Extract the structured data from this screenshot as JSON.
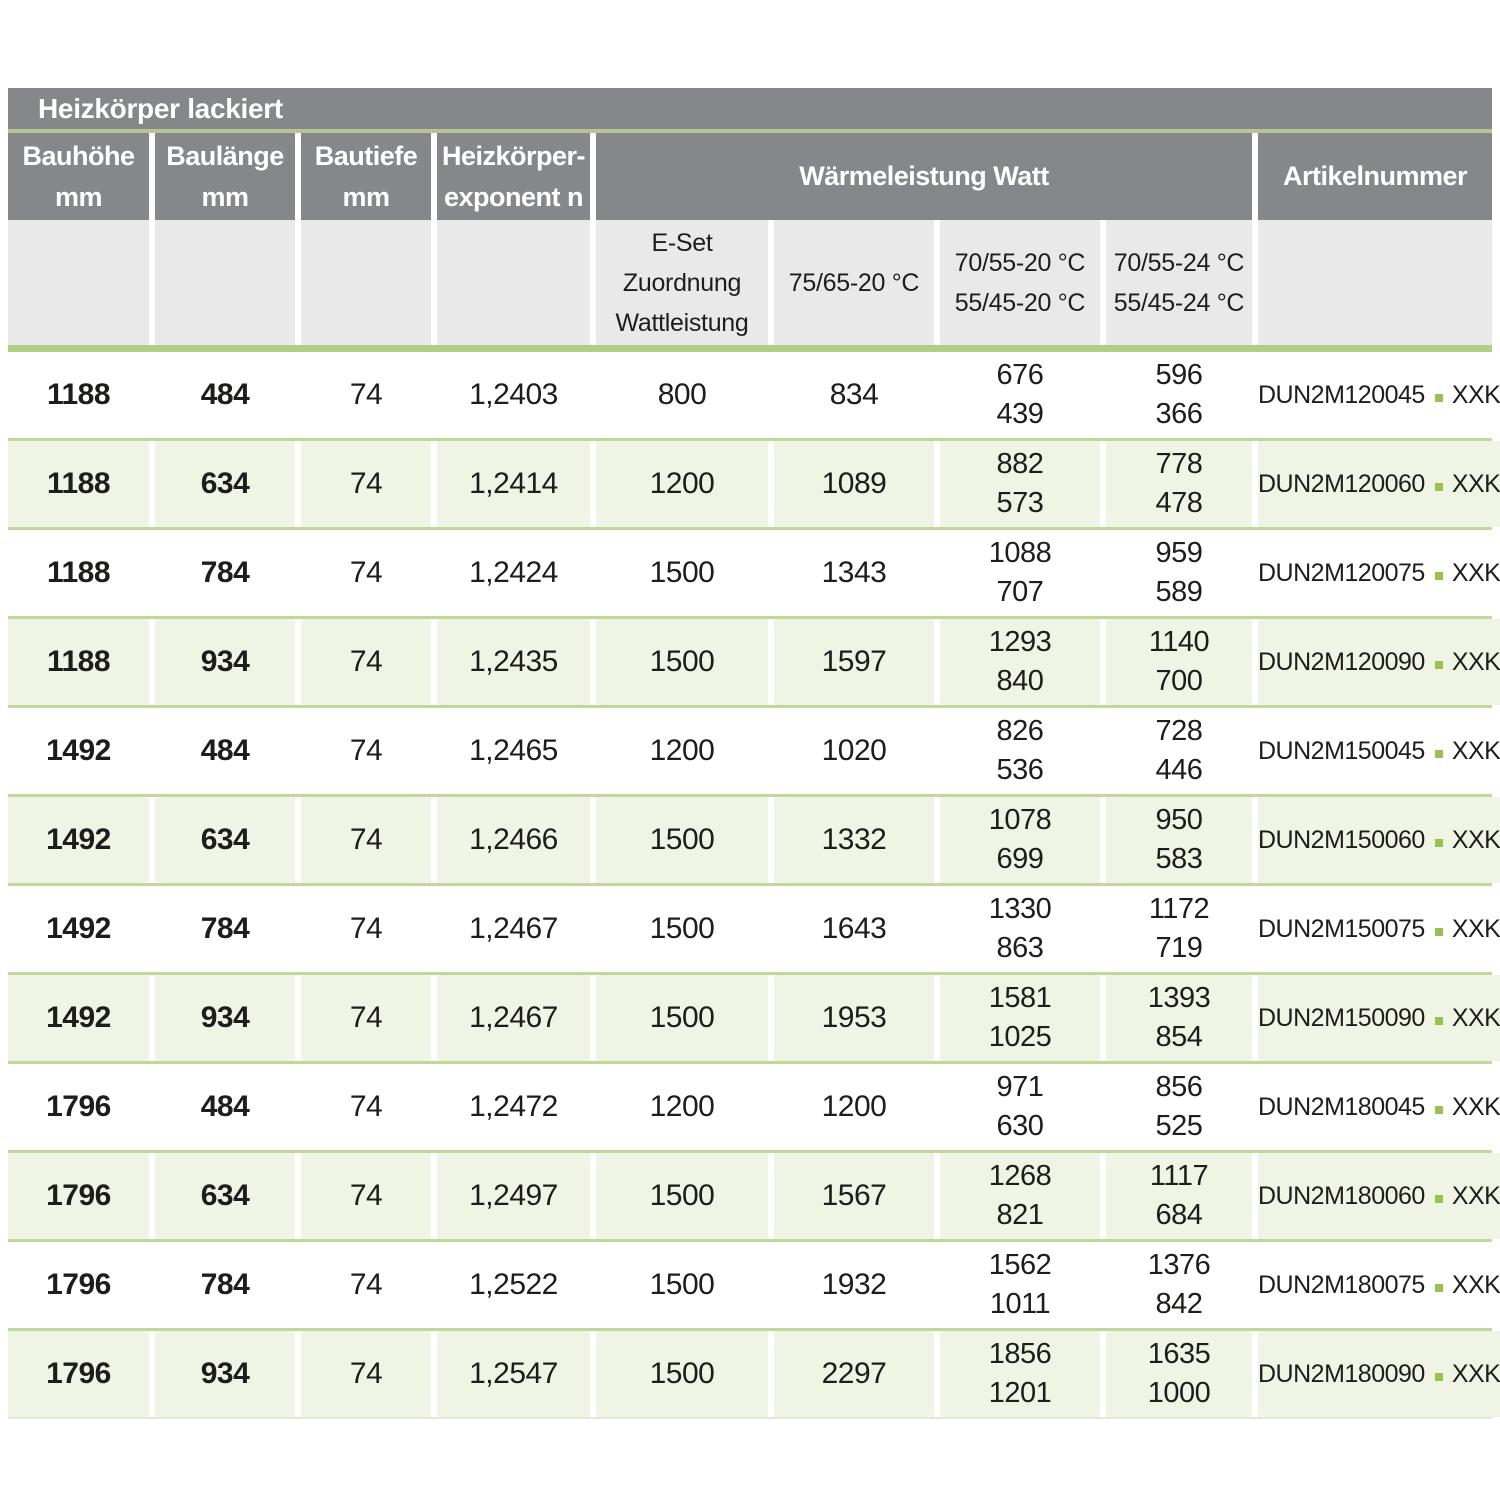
{
  "title": "Heizkörper lackiert",
  "headers": [
    {
      "lines": [
        "Bauhöhe",
        "mm"
      ]
    },
    {
      "lines": [
        "Baulänge",
        "mm"
      ]
    },
    {
      "lines": [
        "Bautiefe",
        "mm"
      ]
    },
    {
      "lines": [
        "Heizkörper-",
        "exponent n"
      ]
    }
  ],
  "watt_group_header": "Wärmeleistung Watt",
  "artikel_header": "Artikelnummer",
  "sub_headers": [
    {
      "lines": [
        "E-Set",
        "Zuordnung",
        "Wattleistung"
      ]
    },
    {
      "lines": [
        "75/65-20 °C"
      ]
    },
    {
      "lines": [
        "70/55-20 °C",
        "55/45-20 °C"
      ]
    },
    {
      "lines": [
        "70/55-24 °C",
        "55/45-24 °C"
      ]
    }
  ],
  "rows": [
    {
      "bauhoehe": "1188",
      "baulaenge": "484",
      "bautiefe": "74",
      "exponent": "1,2403",
      "eset": "800",
      "w7565": "834",
      "w70_20": [
        "676",
        "439"
      ],
      "w70_24": [
        "596",
        "366"
      ],
      "artikel_code": "DUN2M120045",
      "artikel_suffix": "XXK"
    },
    {
      "bauhoehe": "1188",
      "baulaenge": "634",
      "bautiefe": "74",
      "exponent": "1,2414",
      "eset": "1200",
      "w7565": "1089",
      "w70_20": [
        "882",
        "573"
      ],
      "w70_24": [
        "778",
        "478"
      ],
      "artikel_code": "DUN2M120060",
      "artikel_suffix": "XXK"
    },
    {
      "bauhoehe": "1188",
      "baulaenge": "784",
      "bautiefe": "74",
      "exponent": "1,2424",
      "eset": "1500",
      "w7565": "1343",
      "w70_20": [
        "1088",
        "707"
      ],
      "w70_24": [
        "959",
        "589"
      ],
      "artikel_code": "DUN2M120075",
      "artikel_suffix": "XXK"
    },
    {
      "bauhoehe": "1188",
      "baulaenge": "934",
      "bautiefe": "74",
      "exponent": "1,2435",
      "eset": "1500",
      "w7565": "1597",
      "w70_20": [
        "1293",
        "840"
      ],
      "w70_24": [
        "1140",
        "700"
      ],
      "artikel_code": "DUN2M120090",
      "artikel_suffix": "XXK"
    },
    {
      "bauhoehe": "1492",
      "baulaenge": "484",
      "bautiefe": "74",
      "exponent": "1,2465",
      "eset": "1200",
      "w7565": "1020",
      "w70_20": [
        "826",
        "536"
      ],
      "w70_24": [
        "728",
        "446"
      ],
      "artikel_code": "DUN2M150045",
      "artikel_suffix": "XXK"
    },
    {
      "bauhoehe": "1492",
      "baulaenge": "634",
      "bautiefe": "74",
      "exponent": "1,2466",
      "eset": "1500",
      "w7565": "1332",
      "w70_20": [
        "1078",
        "699"
      ],
      "w70_24": [
        "950",
        "583"
      ],
      "artikel_code": "DUN2M150060",
      "artikel_suffix": "XXK"
    },
    {
      "bauhoehe": "1492",
      "baulaenge": "784",
      "bautiefe": "74",
      "exponent": "1,2467",
      "eset": "1500",
      "w7565": "1643",
      "w70_20": [
        "1330",
        "863"
      ],
      "w70_24": [
        "1172",
        "719"
      ],
      "artikel_code": "DUN2M150075",
      "artikel_suffix": "XXK"
    },
    {
      "bauhoehe": "1492",
      "baulaenge": "934",
      "bautiefe": "74",
      "exponent": "1,2467",
      "eset": "1500",
      "w7565": "1953",
      "w70_20": [
        "1581",
        "1025"
      ],
      "w70_24": [
        "1393",
        "854"
      ],
      "artikel_code": "DUN2M150090",
      "artikel_suffix": "XXK"
    },
    {
      "bauhoehe": "1796",
      "baulaenge": "484",
      "bautiefe": "74",
      "exponent": "1,2472",
      "eset": "1200",
      "w7565": "1200",
      "w70_20": [
        "971",
        "630"
      ],
      "w70_24": [
        "856",
        "525"
      ],
      "artikel_code": "DUN2M180045",
      "artikel_suffix": "XXK"
    },
    {
      "bauhoehe": "1796",
      "baulaenge": "634",
      "bautiefe": "74",
      "exponent": "1,2497",
      "eset": "1500",
      "w7565": "1567",
      "w70_20": [
        "1268",
        "821"
      ],
      "w70_24": [
        "1117",
        "684"
      ],
      "artikel_code": "DUN2M180060",
      "artikel_suffix": "XXK"
    },
    {
      "bauhoehe": "1796",
      "baulaenge": "784",
      "bautiefe": "74",
      "exponent": "1,2522",
      "eset": "1500",
      "w7565": "1932",
      "w70_20": [
        "1562",
        "1011"
      ],
      "w70_24": [
        "1376",
        "842"
      ],
      "artikel_code": "DUN2M180075",
      "artikel_suffix": "XXK"
    },
    {
      "bauhoehe": "1796",
      "baulaenge": "934",
      "bautiefe": "74",
      "exponent": "1,2547",
      "eset": "1500",
      "w7565": "2297",
      "w70_20": [
        "1856",
        "1201"
      ],
      "w70_24": [
        "1635",
        "1000"
      ],
      "artikel_code": "DUN2M180090",
      "artikel_suffix": "XXK"
    }
  ],
  "colors": {
    "header_gray": "#85878a",
    "subheader_gray": "#e9e9e9",
    "row_green": "#f0f4e4",
    "separator_green_thick": "#aed086",
    "separator_green_row": "#bed99b",
    "accent_dot_green": "#97c24e"
  }
}
